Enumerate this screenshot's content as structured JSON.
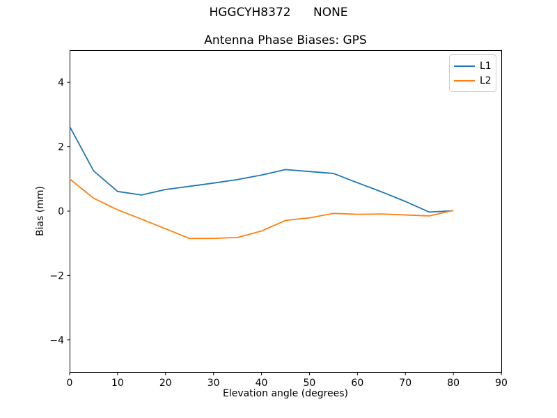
{
  "chart_data": {
    "type": "line",
    "suptitle": "HGGCYH8372      NONE",
    "title": "Antenna Phase Biases: GPS",
    "xlabel": "Elevation angle (degrees)",
    "ylabel": "Bias (mm)",
    "xlim": [
      0,
      90
    ],
    "ylim": [
      -5,
      5
    ],
    "xticks": [
      0,
      10,
      20,
      30,
      40,
      50,
      60,
      70,
      80,
      90
    ],
    "yticks": [
      -4,
      -2,
      0,
      2,
      4
    ],
    "grid": false,
    "legend_position": "upper right",
    "background_color": "#ffffff",
    "frame_color": "#000000",
    "x": [
      0,
      5,
      10,
      15,
      20,
      25,
      30,
      35,
      40,
      45,
      50,
      55,
      60,
      65,
      70,
      75,
      80
    ],
    "series": [
      {
        "name": "L1",
        "color": "#1f77b4",
        "values": [
          2.63,
          1.25,
          0.61,
          0.5,
          0.67,
          0.77,
          0.87,
          0.98,
          1.12,
          1.29,
          1.23,
          1.17,
          0.88,
          0.6,
          0.3,
          -0.03,
          0.01
        ]
      },
      {
        "name": "L2",
        "color": "#ff7f0e",
        "values": [
          1.0,
          0.4,
          0.04,
          -0.25,
          -0.55,
          -0.85,
          -0.85,
          -0.82,
          -0.62,
          -0.29,
          -0.21,
          -0.07,
          -0.1,
          -0.09,
          -0.12,
          -0.15,
          0.02
        ]
      }
    ]
  }
}
